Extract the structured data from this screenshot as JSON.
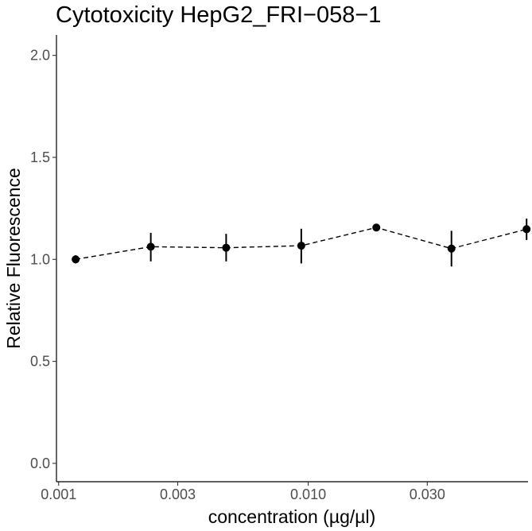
{
  "chart_data": {
    "type": "scatter",
    "title": "Cytotoxicity HepG2_FRI−058−1",
    "xlabel": "concentration (µg/µl)",
    "ylabel": "Relative Fluorescence",
    "x_scale": "log10",
    "xlim": [
      0.00098,
      0.076
    ],
    "ylim": [
      -0.09,
      2.1
    ],
    "x_ticks": [
      0.001,
      0.003,
      0.01,
      0.03
    ],
    "x_tick_labels": [
      "0.001",
      "0.003",
      "0.010",
      "0.030"
    ],
    "y_ticks": [
      0.0,
      0.5,
      1.0,
      1.5,
      2.0
    ],
    "y_tick_labels": [
      "0.0",
      "0.5",
      "1.0",
      "1.5",
      "2.0"
    ],
    "grid": false,
    "series": [
      {
        "line_style": "dashed",
        "color": "#000000",
        "points": [
          {
            "x": 0.00117,
            "y": 1.0,
            "ymin": 0.98,
            "ymax": 1.02
          },
          {
            "x": 0.00234,
            "y": 1.062,
            "ymin": 0.99,
            "ymax": 1.13
          },
          {
            "x": 0.00469,
            "y": 1.057,
            "ymin": 0.99,
            "ymax": 1.125
          },
          {
            "x": 0.00938,
            "y": 1.067,
            "ymin": 0.98,
            "ymax": 1.15
          },
          {
            "x": 0.01875,
            "y": 1.156,
            "ymin": 1.146,
            "ymax": 1.166
          },
          {
            "x": 0.0375,
            "y": 1.053,
            "ymin": 0.965,
            "ymax": 1.14
          },
          {
            "x": 0.075,
            "y": 1.148,
            "ymin": 1.095,
            "ymax": 1.2
          }
        ]
      }
    ]
  }
}
